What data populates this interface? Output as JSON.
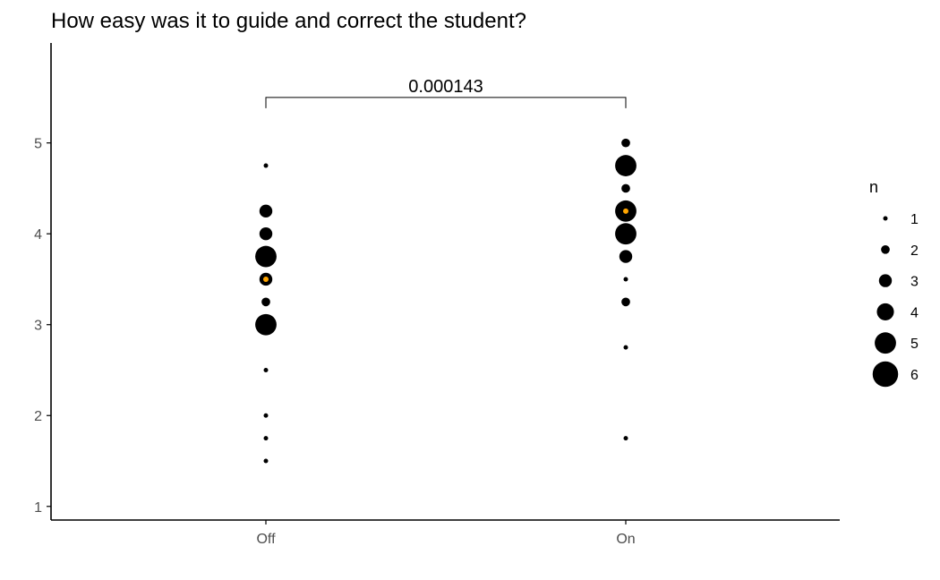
{
  "chart_data": {
    "type": "scatter",
    "title": "How easy was it to guide and correct the student?",
    "xlabel": "",
    "ylabel": "",
    "categories": [
      "Off",
      "On"
    ],
    "ylim": [
      0.85,
      6.1
    ],
    "yticks": [
      1,
      2,
      3,
      4,
      5
    ],
    "grid": false,
    "size_legend": {
      "title": "n",
      "values": [
        1,
        2,
        3,
        4,
        5,
        6
      ],
      "placement": "right"
    },
    "points": [
      {
        "x": "Off",
        "y": 4.75,
        "n": 1
      },
      {
        "x": "Off",
        "y": 4.25,
        "n": 3
      },
      {
        "x": "Off",
        "y": 4.0,
        "n": 3
      },
      {
        "x": "Off",
        "y": 3.75,
        "n": 5
      },
      {
        "x": "Off",
        "y": 3.5,
        "n": 3
      },
      {
        "x": "Off",
        "y": 3.25,
        "n": 2
      },
      {
        "x": "Off",
        "y": 3.0,
        "n": 5
      },
      {
        "x": "Off",
        "y": 2.5,
        "n": 1
      },
      {
        "x": "Off",
        "y": 2.0,
        "n": 1
      },
      {
        "x": "Off",
        "y": 1.75,
        "n": 1
      },
      {
        "x": "Off",
        "y": 1.5,
        "n": 1
      },
      {
        "x": "On",
        "y": 5.0,
        "n": 2
      },
      {
        "x": "On",
        "y": 4.75,
        "n": 5
      },
      {
        "x": "On",
        "y": 4.5,
        "n": 2
      },
      {
        "x": "On",
        "y": 4.25,
        "n": 5
      },
      {
        "x": "On",
        "y": 4.0,
        "n": 5
      },
      {
        "x": "On",
        "y": 3.75,
        "n": 3
      },
      {
        "x": "On",
        "y": 3.5,
        "n": 1
      },
      {
        "x": "On",
        "y": 3.25,
        "n": 2
      },
      {
        "x": "On",
        "y": 2.75,
        "n": 1
      },
      {
        "x": "On",
        "y": 1.75,
        "n": 1
      }
    ],
    "center_markers": [
      {
        "x": "Off",
        "y": 3.5
      },
      {
        "x": "On",
        "y": 4.25
      }
    ],
    "comparison": {
      "from": "Off",
      "to": "On",
      "y": 5.5,
      "label": "0.000143"
    },
    "colors": {
      "point": "#000000",
      "center_marker": "#ffa500",
      "axis": "#000000",
      "tick_label": "#4d4d4d"
    }
  }
}
